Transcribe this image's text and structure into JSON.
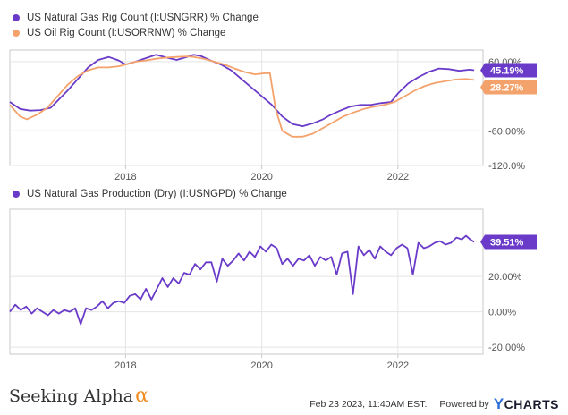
{
  "colors": {
    "purple": "#6a3bc9",
    "orange": "#f4a26b",
    "grid": "#e4e4e4",
    "axis": "#c8c8c8"
  },
  "top_legend": [
    {
      "label": "US Natural Gas Rig Count (I:USNGRR) % Change",
      "color": "#6a3bc9"
    },
    {
      "label": "US Oil Rig Count (I:USORRNW) % Change",
      "color": "#f4a26b"
    }
  ],
  "bottom_legend": [
    {
      "label": "US Natural Gas Production (Dry) (I:USNGPD) % Change",
      "color": "#6a3bc9"
    }
  ],
  "footer": {
    "brand": "Seeking Alpha",
    "brand_symbol": "α",
    "timestamp": "Feb 23 2023, 11:40AM EST.",
    "powered_by": "Powered by",
    "ycharts_y": "Y",
    "ycharts_rest": "CHARTS"
  },
  "chart_data": [
    {
      "type": "line",
      "x_ticks": [
        "2018",
        "2020",
        "2022"
      ],
      "y_ticks": [
        "60.00%",
        "-60.00%",
        "-120.0%"
      ],
      "ylim": [
        -120,
        80
      ],
      "xlim": [
        2016.3,
        2023.25
      ],
      "grid": true,
      "series": [
        {
          "name": "US Natural Gas Rig Count (I:USNGRR) % Change",
          "end_label": "45.19%",
          "points": [
            [
              2016.3,
              -10
            ],
            [
              2016.45,
              -22
            ],
            [
              2016.6,
              -25
            ],
            [
              2016.75,
              -24
            ],
            [
              2016.9,
              -20
            ],
            [
              2017.0,
              -8
            ],
            [
              2017.15,
              10
            ],
            [
              2017.3,
              30
            ],
            [
              2017.45,
              50
            ],
            [
              2017.6,
              63
            ],
            [
              2017.75,
              68
            ],
            [
              2017.9,
              62
            ],
            [
              2018.0,
              55
            ],
            [
              2018.15,
              60
            ],
            [
              2018.3,
              66
            ],
            [
              2018.45,
              72
            ],
            [
              2018.6,
              67
            ],
            [
              2018.75,
              63
            ],
            [
              2018.9,
              68
            ],
            [
              2019.0,
              72
            ],
            [
              2019.1,
              70
            ],
            [
              2019.25,
              62
            ],
            [
              2019.4,
              55
            ],
            [
              2019.55,
              45
            ],
            [
              2019.7,
              30
            ],
            [
              2019.85,
              15
            ],
            [
              2020.0,
              0
            ],
            [
              2020.15,
              -15
            ],
            [
              2020.3,
              -35
            ],
            [
              2020.45,
              -48
            ],
            [
              2020.6,
              -52
            ],
            [
              2020.75,
              -47
            ],
            [
              2020.9,
              -40
            ],
            [
              2021.0,
              -33
            ],
            [
              2021.15,
              -25
            ],
            [
              2021.3,
              -18
            ],
            [
              2021.45,
              -15
            ],
            [
              2021.6,
              -15
            ],
            [
              2021.75,
              -12
            ],
            [
              2021.9,
              -10
            ],
            [
              2022.0,
              5
            ],
            [
              2022.15,
              22
            ],
            [
              2022.3,
              33
            ],
            [
              2022.45,
              42
            ],
            [
              2022.6,
              48
            ],
            [
              2022.75,
              47
            ],
            [
              2022.9,
              44
            ],
            [
              2023.05,
              46
            ],
            [
              2023.12,
              45.19
            ]
          ]
        },
        {
          "name": "US Oil Rig Count (I:USORRNW) % Change",
          "end_label": "28.27%",
          "points": [
            [
              2016.3,
              -15
            ],
            [
              2016.45,
              -35
            ],
            [
              2016.55,
              -40
            ],
            [
              2016.7,
              -32
            ],
            [
              2016.85,
              -20
            ],
            [
              2017.0,
              0
            ],
            [
              2017.15,
              20
            ],
            [
              2017.3,
              35
            ],
            [
              2017.45,
              45
            ],
            [
              2017.6,
              50
            ],
            [
              2017.75,
              50
            ],
            [
              2017.9,
              52
            ],
            [
              2018.0,
              55
            ],
            [
              2018.15,
              60
            ],
            [
              2018.3,
              62
            ],
            [
              2018.45,
              65
            ],
            [
              2018.6,
              67
            ],
            [
              2018.75,
              68
            ],
            [
              2018.9,
              69
            ],
            [
              2019.0,
              68
            ],
            [
              2019.15,
              65
            ],
            [
              2019.3,
              60
            ],
            [
              2019.45,
              55
            ],
            [
              2019.6,
              48
            ],
            [
              2019.75,
              42
            ],
            [
              2019.9,
              38
            ],
            [
              2020.05,
              40
            ],
            [
              2020.12,
              40
            ],
            [
              2020.2,
              -20
            ],
            [
              2020.3,
              -60
            ],
            [
              2020.45,
              -70
            ],
            [
              2020.6,
              -70
            ],
            [
              2020.75,
              -65
            ],
            [
              2020.9,
              -55
            ],
            [
              2021.05,
              -45
            ],
            [
              2021.2,
              -35
            ],
            [
              2021.35,
              -28
            ],
            [
              2021.5,
              -22
            ],
            [
              2021.65,
              -18
            ],
            [
              2021.8,
              -15
            ],
            [
              2021.95,
              -10
            ],
            [
              2022.1,
              0
            ],
            [
              2022.25,
              10
            ],
            [
              2022.4,
              18
            ],
            [
              2022.55,
              23
            ],
            [
              2022.7,
              26
            ],
            [
              2022.85,
              29
            ],
            [
              2023.0,
              30
            ],
            [
              2023.12,
              28.27
            ]
          ]
        }
      ]
    },
    {
      "type": "line",
      "x_ticks": [
        "2018",
        "2020",
        "2022"
      ],
      "y_ticks": [
        "20.00%",
        "0.00%",
        "-20.00%"
      ],
      "ylim": [
        -24,
        58
      ],
      "xlim": [
        2016.3,
        2023.25
      ],
      "grid": true,
      "series": [
        {
          "name": "US Natural Gas Production (Dry) (I:USNGPD) % Change",
          "end_label": "39.51%",
          "points": [
            [
              2016.3,
              0
            ],
            [
              2016.38,
              4
            ],
            [
              2016.46,
              1
            ],
            [
              2016.54,
              3
            ],
            [
              2016.62,
              -1
            ],
            [
              2016.7,
              2
            ],
            [
              2016.78,
              0
            ],
            [
              2016.86,
              -2
            ],
            [
              2016.94,
              1
            ],
            [
              2017.02,
              -1
            ],
            [
              2017.1,
              1
            ],
            [
              2017.18,
              0
            ],
            [
              2017.26,
              2
            ],
            [
              2017.34,
              -7
            ],
            [
              2017.42,
              2
            ],
            [
              2017.5,
              1
            ],
            [
              2017.58,
              3
            ],
            [
              2017.66,
              6
            ],
            [
              2017.74,
              2
            ],
            [
              2017.82,
              5
            ],
            [
              2017.9,
              6
            ],
            [
              2017.98,
              5
            ],
            [
              2018.06,
              9
            ],
            [
              2018.14,
              10
            ],
            [
              2018.22,
              7
            ],
            [
              2018.3,
              13
            ],
            [
              2018.38,
              7
            ],
            [
              2018.46,
              13
            ],
            [
              2018.54,
              19
            ],
            [
              2018.62,
              14
            ],
            [
              2018.7,
              19
            ],
            [
              2018.78,
              16
            ],
            [
              2018.86,
              22
            ],
            [
              2018.94,
              21
            ],
            [
              2019.02,
              27
            ],
            [
              2019.1,
              24
            ],
            [
              2019.18,
              28
            ],
            [
              2019.26,
              28
            ],
            [
              2019.34,
              17
            ],
            [
              2019.42,
              30
            ],
            [
              2019.5,
              26
            ],
            [
              2019.58,
              29
            ],
            [
              2019.66,
              33
            ],
            [
              2019.74,
              29
            ],
            [
              2019.82,
              34
            ],
            [
              2019.9,
              31
            ],
            [
              2019.98,
              37
            ],
            [
              2020.06,
              34
            ],
            [
              2020.14,
              38
            ],
            [
              2020.22,
              36
            ],
            [
              2020.3,
              27
            ],
            [
              2020.38,
              30
            ],
            [
              2020.46,
              26
            ],
            [
              2020.54,
              30
            ],
            [
              2020.62,
              29
            ],
            [
              2020.7,
              32
            ],
            [
              2020.78,
              26
            ],
            [
              2020.86,
              31
            ],
            [
              2020.94,
              29
            ],
            [
              2021.02,
              31
            ],
            [
              2021.1,
              21
            ],
            [
              2021.18,
              33
            ],
            [
              2021.26,
              34
            ],
            [
              2021.34,
              10
            ],
            [
              2021.42,
              37
            ],
            [
              2021.5,
              32
            ],
            [
              2021.58,
              35
            ],
            [
              2021.66,
              30
            ],
            [
              2021.74,
              37
            ],
            [
              2021.82,
              34
            ],
            [
              2021.9,
              32
            ],
            [
              2021.98,
              36
            ],
            [
              2022.06,
              38
            ],
            [
              2022.14,
              36
            ],
            [
              2022.22,
              21
            ],
            [
              2022.3,
              39
            ],
            [
              2022.38,
              36
            ],
            [
              2022.46,
              37
            ],
            [
              2022.54,
              39
            ],
            [
              2022.62,
              40
            ],
            [
              2022.7,
              38
            ],
            [
              2022.78,
              39
            ],
            [
              2022.86,
              42
            ],
            [
              2022.94,
              41
            ],
            [
              2023.0,
              43
            ],
            [
              2023.06,
              41
            ],
            [
              2023.12,
              39.51
            ]
          ]
        }
      ]
    }
  ]
}
